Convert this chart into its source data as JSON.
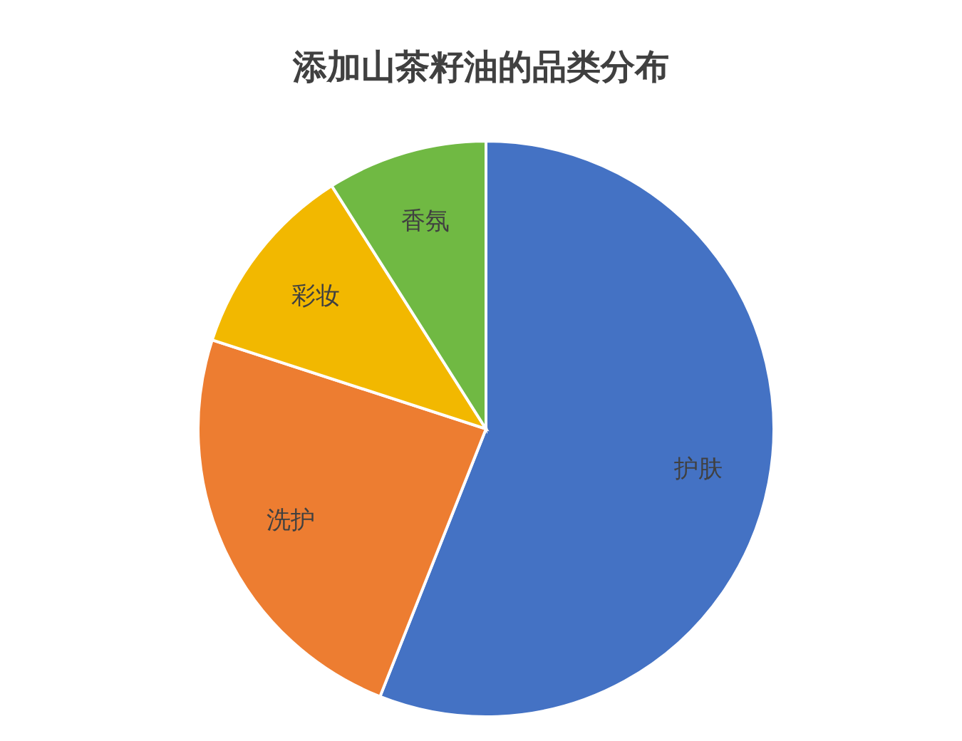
{
  "chart_data": {
    "type": "pie",
    "title": "添加山茶籽油的品类分布",
    "categories": [
      "护肤",
      "洗护",
      "彩妆",
      "香氛"
    ],
    "values": [
      56,
      24,
      11,
      9
    ],
    "colors": [
      "#4472c4",
      "#ed7d31",
      "#f2b800",
      "#70b943"
    ],
    "legend": false
  }
}
